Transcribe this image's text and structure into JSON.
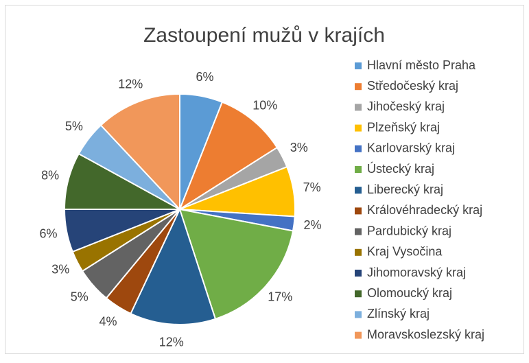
{
  "chart_data": {
    "type": "pie",
    "title": "Zastoupení mužů v krajích",
    "categories": [
      "Hlavní město Praha",
      "Středočeský kraj",
      "Jihočeský kraj",
      "Plzeňský kraj",
      "Karlovarský kraj",
      "Ústecký kraj",
      "Liberecký kraj",
      "Královéhradecký kraj",
      "Pardubický kraj",
      "Kraj Vysočina",
      "Jihomoravský kraj",
      "Olomoucký kraj",
      "Zlínský kraj",
      "Moravskoslezský kraj"
    ],
    "values": [
      6,
      10,
      3,
      7,
      2,
      17,
      12,
      4,
      5,
      3,
      6,
      8,
      5,
      12
    ],
    "value_labels": [
      "6%",
      "10%",
      "3%",
      "7%",
      "2%",
      "17%",
      "12%",
      "4%",
      "5%",
      "3%",
      "6%",
      "8%",
      "5%",
      "12%"
    ],
    "colors": [
      "#5B9BD5",
      "#ED7D31",
      "#A5A5A5",
      "#FFC000",
      "#4472C4",
      "#70AD47",
      "#255E91",
      "#9E480E",
      "#636363",
      "#997300",
      "#264478",
      "#43682B",
      "#7CAFDD",
      "#F1975A"
    ],
    "legend": "right"
  }
}
